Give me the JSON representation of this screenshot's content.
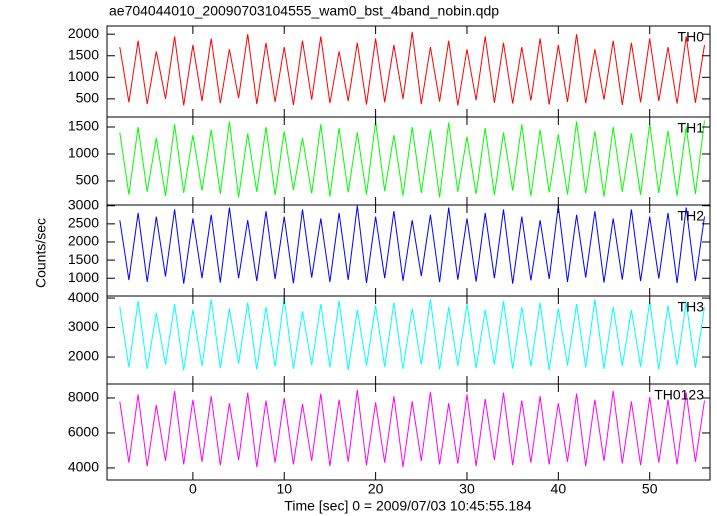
{
  "chart_data": {
    "type": "line",
    "title": "ae704044010_20090703104555_wam0_bst_4band_nobin.qdp",
    "x_label": "Time [sec] 0 = 2009/07/03 10:45:55.184",
    "y_label": "Counts/sec",
    "xlim": [
      -9.4,
      56.6
    ],
    "xticks": [
      0,
      10,
      20,
      30,
      40,
      50
    ],
    "x": [
      -8,
      -7,
      -6,
      -5,
      -4,
      -3,
      -2,
      -1,
      0,
      1,
      2,
      3,
      4,
      5,
      6,
      7,
      8,
      9,
      10,
      11,
      12,
      13,
      14,
      15,
      16,
      17,
      18,
      19,
      20,
      21,
      22,
      23,
      24,
      25,
      26,
      27,
      28,
      29,
      30,
      31,
      32,
      33,
      34,
      35,
      36,
      37,
      38,
      39,
      40,
      41,
      42,
      43,
      44,
      45,
      46,
      47,
      48,
      49,
      50,
      51,
      52,
      53,
      54,
      55,
      56
    ],
    "series": [
      {
        "name": "TH0",
        "color": "#ff0000",
        "ylim": [
          80,
          2190
        ],
        "yticks": [
          500,
          1000,
          1500,
          2000
        ],
        "values": [
          1700,
          420,
          1850,
          380,
          1600,
          500,
          1950,
          350,
          1750,
          450,
          1900,
          400,
          1650,
          520,
          2000,
          380,
          1800,
          430,
          1700,
          360,
          1850,
          480,
          1950,
          400,
          1600,
          450,
          1800,
          370,
          1900,
          420,
          1750,
          500,
          2050,
          380,
          1700,
          440,
          1850,
          350,
          1650,
          470,
          1950,
          410,
          1800,
          390,
          1700,
          460,
          1900,
          370,
          1750,
          430,
          2000,
          400,
          1650,
          480,
          1850,
          360,
          1800,
          420,
          1900,
          450,
          1700,
          390,
          1950,
          410,
          1750
        ]
      },
      {
        "name": "TH1",
        "color": "#00ff00",
        "ylim": [
          55,
          1685
        ],
        "yticks": [
          500,
          1000,
          1500
        ],
        "values": [
          1400,
          250,
          1500,
          300,
          1300,
          220,
          1550,
          280,
          1350,
          320,
          1450,
          260,
          1600,
          200,
          1380,
          300,
          1500,
          240,
          1420,
          330,
          1300,
          270,
          1550,
          210,
          1480,
          290,
          1400,
          250,
          1600,
          310,
          1350,
          230,
          1500,
          280,
          1450,
          200,
          1580,
          300,
          1320,
          260,
          1480,
          240,
          1400,
          320,
          1550,
          220,
          1450,
          290,
          1360,
          250,
          1600,
          270,
          1420,
          210,
          1500,
          300,
          1380,
          240,
          1560,
          280,
          1430,
          230,
          1500,
          260,
          1620
        ]
      },
      {
        "name": "TH2",
        "color": "#0000ff",
        "ylim": [
          510,
          3020
        ],
        "yticks": [
          1000,
          1500,
          2000,
          2500,
          3000
        ],
        "values": [
          2600,
          950,
          2800,
          900,
          2700,
          1050,
          2900,
          850,
          2650,
          1000,
          2750,
          880,
          2950,
          1000,
          2600,
          920,
          2850,
          980,
          2700,
          860,
          2900,
          1020,
          2650,
          900,
          2800,
          950,
          3000,
          870,
          2700,
          1000,
          2850,
          930,
          2600,
          1060,
          2750,
          890,
          2950,
          960,
          2650,
          910,
          2800,
          1000,
          2900,
          850,
          2700,
          940,
          2600,
          980,
          3000,
          900,
          2750,
          1020,
          2850,
          880,
          2650,
          960,
          2900,
          920,
          2700,
          990,
          2800,
          870,
          2950,
          930,
          2700
        ]
      },
      {
        "name": "TH3",
        "color": "#00ffff",
        "ylim": [
          1085,
          4070
        ],
        "yticks": [
          2000,
          3000,
          4000
        ],
        "values": [
          3700,
          1650,
          3900,
          1600,
          3500,
          1750,
          3800,
          1550,
          3600,
          1700,
          3950,
          1620,
          3650,
          1780,
          3850,
          1580,
          3700,
          1680,
          4000,
          1600,
          3550,
          1720,
          3800,
          1640,
          3900,
          1560,
          3600,
          1700,
          3750,
          1660,
          3850,
          1600,
          3650,
          1740,
          3950,
          1580,
          3700,
          1690,
          3800,
          1620,
          3600,
          1750,
          3900,
          1600,
          3700,
          1680,
          3850,
          1560,
          3650,
          1720,
          3800,
          1640,
          3950,
          1600,
          3700,
          1700,
          3600,
          1660,
          3900,
          1580,
          3750,
          1720,
          3850,
          1640,
          3700
        ]
      },
      {
        "name": "TH0123",
        "color": "#ff00ff",
        "ylim": [
          3310,
          8800
        ],
        "yticks": [
          4000,
          6000,
          8000
        ],
        "values": [
          7800,
          4300,
          8200,
          4100,
          7600,
          4400,
          8400,
          4200,
          7900,
          4350,
          8100,
          4150,
          7700,
          4450,
          8300,
          4050,
          7850,
          4300,
          8000,
          4200,
          7650,
          4400,
          8250,
          4100,
          7900,
          4350,
          8450,
          4150,
          7750,
          4300,
          8100,
          4050,
          7800,
          4400,
          8350,
          4200,
          7700,
          4250,
          8200,
          4100,
          7950,
          4450,
          8300,
          4150,
          7850,
          4300,
          8100,
          4200,
          7700,
          4350,
          8250,
          4100,
          7900,
          4400,
          8400,
          4250,
          7800,
          4150,
          8050,
          4300,
          7900,
          4200,
          8300,
          4350,
          7850
        ]
      }
    ]
  }
}
